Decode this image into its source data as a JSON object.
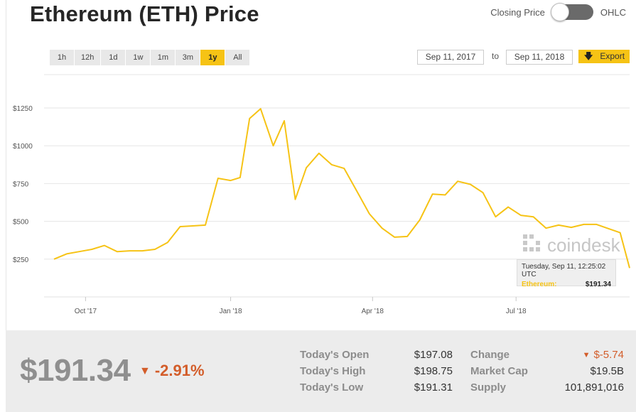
{
  "page": {
    "title": "Ethereum (ETH) Price"
  },
  "toggle": {
    "left_label": "Closing Price",
    "right_label": "OHLC",
    "state": "closing-price"
  },
  "ranges": {
    "items": [
      "1h",
      "12h",
      "1d",
      "1w",
      "1m",
      "3m",
      "1y",
      "All"
    ],
    "active": "1y"
  },
  "date_range": {
    "from": "Sep 11, 2017",
    "to_label": "to",
    "to": "Sep 11, 2018"
  },
  "export": {
    "label": "Export",
    "icon": "download-arrow-icon"
  },
  "watermark": {
    "text": "coindesk",
    "icon": "coindesk-logo-icon"
  },
  "tooltip": {
    "timestamp": "Tuesday, Sep 11, 12:25:02 UTC",
    "series": "Ethereum:",
    "value": "$191.34"
  },
  "colors": {
    "accent": "#f6c315",
    "line": "#f6c315",
    "negative": "#d35d2a",
    "footer_bg": "#ececec"
  },
  "chart_data": {
    "type": "line",
    "y_tick_labels": [
      "$250",
      "$500",
      "$750",
      "$1000",
      "$1250"
    ],
    "y_ticks": [
      250,
      500,
      750,
      1000,
      1250
    ],
    "x_tick_labels": [
      "Oct '17",
      "Jan '18",
      "Apr '18",
      "Jul '18"
    ],
    "x_ticks": [
      "2017-10-01",
      "2018-01-01",
      "2018-04-01",
      "2018-07-01"
    ],
    "x_range": [
      "2017-09-11",
      "2018-09-11"
    ],
    "ylim": [
      0,
      1400
    ],
    "grid": true,
    "series": [
      {
        "name": "Ethereum",
        "x": [
          "2017-09-11",
          "2017-09-19",
          "2017-09-27",
          "2017-10-05",
          "2017-10-13",
          "2017-10-21",
          "2017-10-29",
          "2017-11-06",
          "2017-11-14",
          "2017-11-22",
          "2017-11-30",
          "2017-12-08",
          "2017-12-16",
          "2017-12-24",
          "2018-01-01",
          "2018-01-07",
          "2018-01-13",
          "2018-01-20",
          "2018-01-28",
          "2018-02-04",
          "2018-02-11",
          "2018-02-18",
          "2018-02-26",
          "2018-03-06",
          "2018-03-14",
          "2018-03-22",
          "2018-03-30",
          "2018-04-07",
          "2018-04-15",
          "2018-04-23",
          "2018-05-01",
          "2018-05-09",
          "2018-05-17",
          "2018-05-25",
          "2018-06-02",
          "2018-06-10",
          "2018-06-18",
          "2018-06-26",
          "2018-07-04",
          "2018-07-12",
          "2018-07-20",
          "2018-07-28",
          "2018-08-05",
          "2018-08-13",
          "2018-08-21",
          "2018-08-29",
          "2018-09-05",
          "2018-09-11"
        ],
        "y": [
          250,
          285,
          300,
          315,
          340,
          300,
          305,
          305,
          315,
          360,
          465,
          470,
          475,
          785,
          770,
          790,
          1180,
          1245,
          1000,
          1165,
          645,
          855,
          950,
          875,
          850,
          700,
          550,
          455,
          395,
          400,
          510,
          680,
          675,
          765,
          745,
          690,
          530,
          595,
          540,
          530,
          455,
          475,
          460,
          480,
          480,
          450,
          425,
          191
        ]
      }
    ]
  },
  "summary": {
    "price": "$191.34",
    "change_pct": "-2.91%",
    "open_label": "Today's Open",
    "open_value": "$197.08",
    "high_label": "Today's High",
    "high_value": "$198.75",
    "low_label": "Today's Low",
    "low_value": "$191.31",
    "change_label": "Change",
    "change_value": "$-5.74",
    "mcap_label": "Market Cap",
    "mcap_value": "$19.5B",
    "supply_label": "Supply",
    "supply_value": "101,891,016"
  }
}
